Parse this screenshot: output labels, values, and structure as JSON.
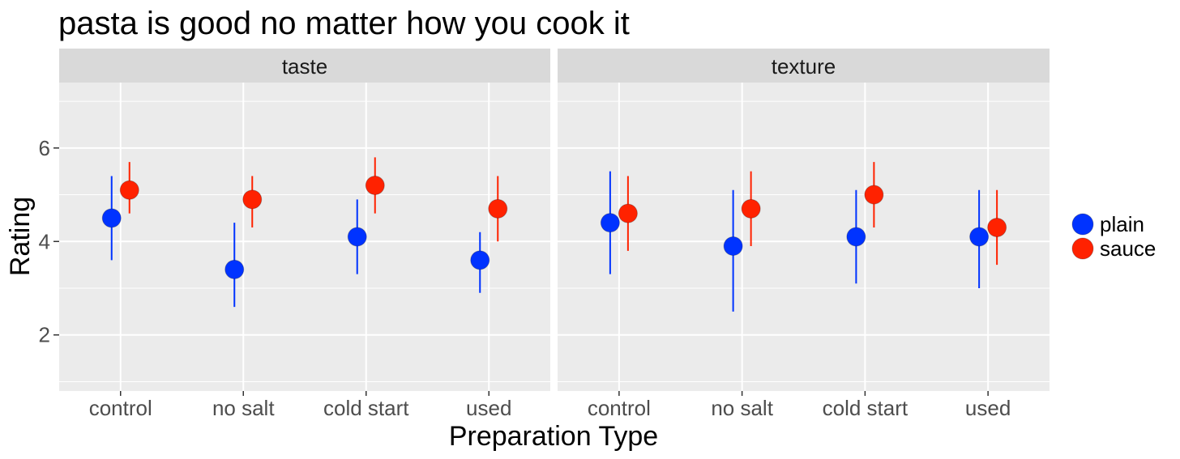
{
  "chart_data": {
    "type": "scatter",
    "title": "pasta is good no matter how you cook it",
    "xlabel": "Preparation Type",
    "ylabel": "Rating",
    "ylim": [
      0.8,
      7.4
    ],
    "yticks": [
      2,
      4,
      6
    ],
    "categories": [
      "control",
      "no salt",
      "cold start",
      "used"
    ],
    "grid": true,
    "legend_position": "right",
    "colors": {
      "plain": "#0033ff",
      "sauce": "#ff2200"
    },
    "facets": [
      {
        "label": "taste",
        "series": [
          {
            "name": "plain",
            "values": [
              4.5,
              3.4,
              4.1,
              3.6
            ],
            "lower": [
              3.6,
              2.6,
              3.3,
              2.9
            ],
            "upper": [
              5.4,
              4.4,
              4.9,
              4.2
            ]
          },
          {
            "name": "sauce",
            "values": [
              5.1,
              4.9,
              5.2,
              4.7
            ],
            "lower": [
              4.6,
              4.3,
              4.6,
              4.0
            ],
            "upper": [
              5.7,
              5.4,
              5.8,
              5.4
            ]
          }
        ]
      },
      {
        "label": "texture",
        "series": [
          {
            "name": "plain",
            "values": [
              4.4,
              3.9,
              4.1,
              4.1
            ],
            "lower": [
              3.3,
              2.5,
              3.1,
              3.0
            ],
            "upper": [
              5.5,
              5.1,
              5.1,
              5.1
            ]
          },
          {
            "name": "sauce",
            "values": [
              4.6,
              4.7,
              5.0,
              4.3
            ],
            "lower": [
              3.8,
              3.9,
              4.3,
              3.5
            ],
            "upper": [
              5.4,
              5.5,
              5.7,
              5.1
            ]
          }
        ]
      }
    ]
  }
}
